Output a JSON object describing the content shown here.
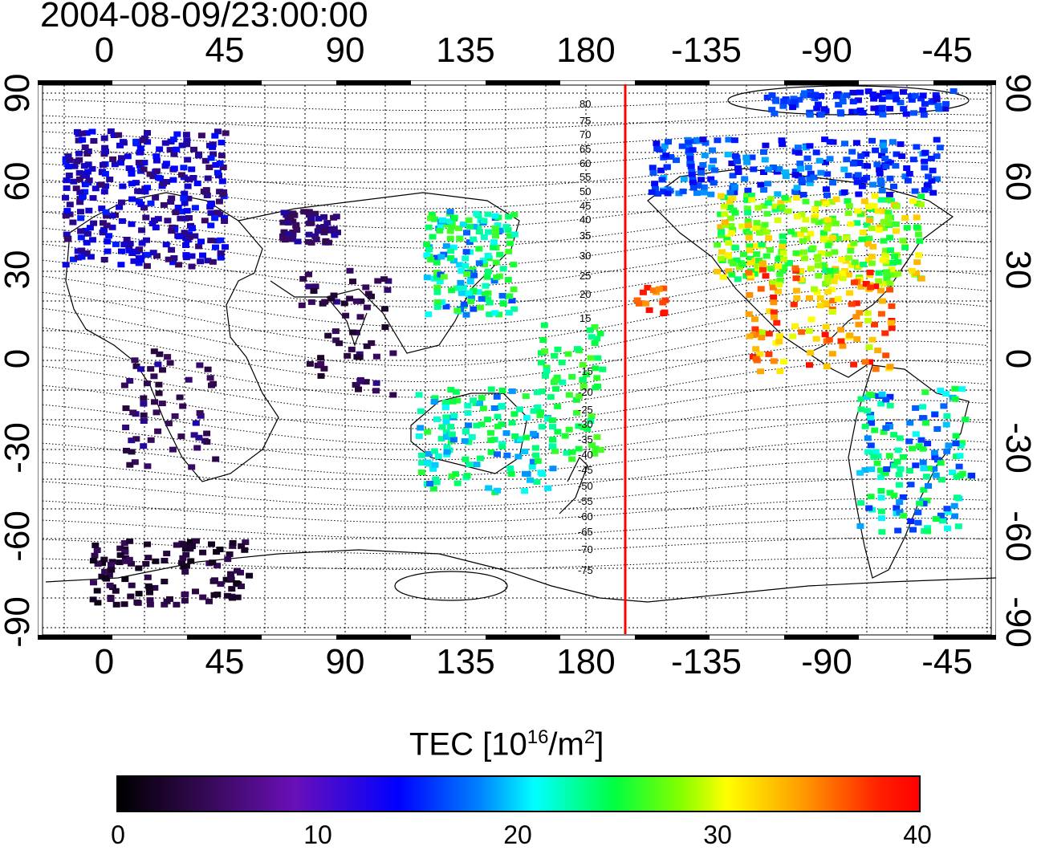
{
  "timestamp": "2004-08-09/23:00:00",
  "top_lon_ticks": [
    "0",
    "45",
    "90",
    "135",
    "180",
    "-135",
    "-90",
    "-45"
  ],
  "bottom_lon_ticks": [
    "0",
    "45",
    "90",
    "135",
    "180",
    "-135",
    "-90",
    "-45"
  ],
  "left_lat_ticks": [
    "90",
    "60",
    "30",
    "0",
    "-30",
    "-60",
    "-90"
  ],
  "right_lat_ticks": [
    "90",
    "60",
    "30",
    "0",
    "-30",
    "-60",
    "-90"
  ],
  "colorbar": {
    "title": "TEC  [10",
    "title_sup": "16",
    "title_mid": "/m",
    "title_sup2": "2",
    "title_end": "]",
    "ticks": [
      "0",
      "10",
      "20",
      "30",
      "40"
    ]
  },
  "magnetic_lat_labels": [
    "80",
    "75",
    "70",
    "65",
    "60",
    "55",
    "50",
    "45",
    "40",
    "35",
    "30",
    "25",
    "20",
    "15",
    "-15",
    "-20",
    "-25",
    "-30",
    "-35",
    "-40",
    "-45",
    "-50",
    "-55",
    "-60",
    "-65",
    "-70",
    "-75"
  ],
  "colors": {
    "terminator_line": "#ff0000",
    "grid": "#000000"
  }
}
